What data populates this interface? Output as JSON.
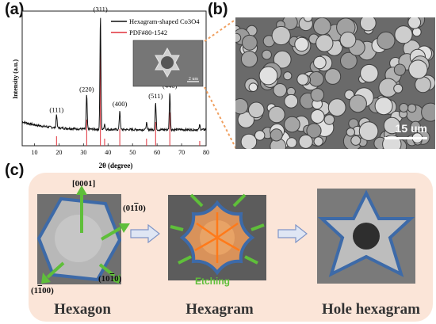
{
  "panels": {
    "a": "(a)",
    "b": "(b)",
    "c": "(c)"
  },
  "chart_data": {
    "type": "line",
    "xlabel": "2θ (degree)",
    "ylabel": "Intensity (a.u.)",
    "xlim": [
      5,
      80
    ],
    "xticks": [
      10,
      20,
      30,
      40,
      50,
      60,
      70,
      80
    ],
    "series": [
      {
        "name": "Hexagram-shaped Co3O4",
        "color": "#111111",
        "peaks": [
          {
            "x": 19.0,
            "y": 0.12,
            "label": "(111)"
          },
          {
            "x": 31.3,
            "y": 0.3,
            "label": "(220)"
          },
          {
            "x": 36.9,
            "y": 1.0,
            "label": "(311)"
          },
          {
            "x": 38.6,
            "y": 0.05,
            "label": ""
          },
          {
            "x": 44.8,
            "y": 0.17,
            "label": "(400)"
          },
          {
            "x": 55.7,
            "y": 0.06,
            "label": ""
          },
          {
            "x": 59.4,
            "y": 0.24,
            "label": "(511)"
          },
          {
            "x": 65.2,
            "y": 0.33,
            "label": "(440)"
          },
          {
            "x": 77.4,
            "y": 0.04,
            "label": ""
          }
        ]
      },
      {
        "name": "PDF#80-1542",
        "color": "#e0303a",
        "sticks": [
          {
            "x": 19.0,
            "h": 0.08
          },
          {
            "x": 31.3,
            "h": 0.22
          },
          {
            "x": 36.9,
            "h": 0.95
          },
          {
            "x": 38.6,
            "h": 0.06
          },
          {
            "x": 44.8,
            "h": 0.14
          },
          {
            "x": 55.7,
            "h": 0.06
          },
          {
            "x": 59.4,
            "h": 0.2
          },
          {
            "x": 65.2,
            "h": 0.28
          },
          {
            "x": 77.4,
            "h": 0.04
          }
        ]
      }
    ],
    "legend_position": "top-right",
    "inset_scale": "2 um"
  },
  "sem": {
    "scale": "15 um"
  },
  "schematic": {
    "stages": [
      "Hexagon",
      "Hexagram",
      "Hole hexagram"
    ],
    "facets": {
      "top": "[0001]",
      "right": "(01",
      "right_bar": "1",
      "right_end": "0)",
      "bottom_left": "(1",
      "bottom_left_bar": "1",
      "bottom_left_end": "00)",
      "bottom_right": "(10",
      "bottom_right_bar": "1",
      "bottom_right_end": "0)"
    },
    "etching": "Etching"
  }
}
